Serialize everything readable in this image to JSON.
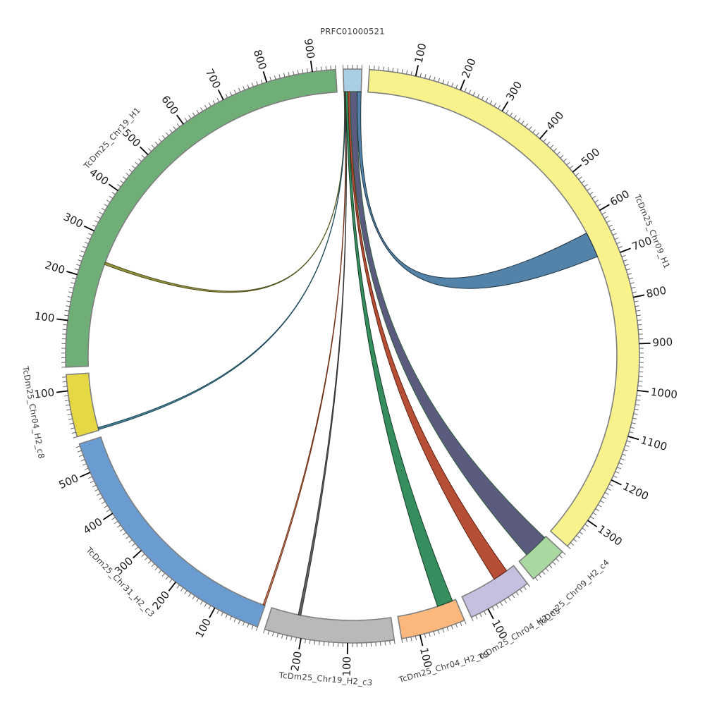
{
  "title": "",
  "background": "#ffffff",
  "chart_data": {
    "type": "chord",
    "layout": {
      "grid": false,
      "legend": "none",
      "tick_minor_interval": 10,
      "tick_major_interval": 100,
      "segment_border_color": "#7f7f7f",
      "tick_color_minor": "#666666",
      "tick_color_major": "#000000",
      "tick_label_color": "#1a1a1a",
      "name_label_color": "#3d3d3d"
    },
    "segments": [
      {
        "id": "PRFC01000521",
        "label": "PRFC01000521",
        "size": 40,
        "color": "#a9cfe5",
        "tick_labels": []
      },
      {
        "id": "TcDm25_Chr09_H1",
        "label": "TcDm25_Chr09_H1",
        "size": 1370,
        "color": "#f7f28b",
        "tick_labels": [
          100,
          200,
          300,
          400,
          500,
          600,
          700,
          800,
          900,
          1000,
          1100,
          1200,
          1300
        ]
      },
      {
        "id": "TcDm25_Chr09_H2_c4",
        "label": "TcDm25_Chr09_H2_c4",
        "size": 85,
        "color": "#a9d9a0",
        "tick_labels": []
      },
      {
        "id": "TcDm25_Chr04_H2_c5",
        "label": "TcDm25_Chr04_H2_c5",
        "size": 140,
        "color": "#c5bfe0",
        "tick_labels": [
          100
        ]
      },
      {
        "id": "TcDm25_Chr04_H2_c9",
        "label": "TcDm25_Chr04_H2_c9",
        "size": 140,
        "color": "#fcb87c",
        "tick_labels": [
          100
        ]
      },
      {
        "id": "TcDm25_Chr19_H2_c3",
        "label": "TcDm25_Chr19_H2_c3",
        "size": 280,
        "color": "#b9b9b9",
        "tick_labels": [
          100,
          200
        ]
      },
      {
        "id": "TcDm25_Chr31_H2_c3",
        "label": "TcDm25_Chr31_H2_c3",
        "size": 565,
        "color": "#6a9cd1",
        "tick_labels": [
          100,
          200,
          300,
          400,
          500
        ]
      },
      {
        "id": "TcDm25_Chr04_H2_c8",
        "label": "TcDm25_Chr04_H2_c8",
        "size": 135,
        "color": "#e6d845",
        "tick_labels": [
          100
        ]
      },
      {
        "id": "TcDm25_Chr19_H1",
        "label": "TcDm25_Chr19_H1",
        "size": 950,
        "color": "#6fae77",
        "tick_labels": [
          100,
          200,
          300,
          400,
          500,
          600,
          700,
          800,
          900
        ]
      }
    ],
    "chords": [
      {
        "source": "PRFC01000521",
        "source_range": [
          0.5,
          1.3
        ],
        "target": "TcDm25_Chr19_H1",
        "target_range": [
          240,
          246
        ],
        "color": "#8f8f3d",
        "border": "#4f4f1d"
      },
      {
        "source": "PRFC01000521",
        "source_range": [
          1.3,
          2.1
        ],
        "target": "TcDm25_Chr04_H2_c8",
        "target_range": [
          2,
          7
        ],
        "color": "#447d92",
        "border": "#1f4a5a"
      },
      {
        "source": "PRFC01000521",
        "source_range": [
          2.1,
          2.9
        ],
        "target": "TcDm25_Chr31_H2_c3",
        "target_range": [
          1,
          5
        ],
        "color": "#c07b5e",
        "border": "#6f3018"
      },
      {
        "source": "PRFC01000521",
        "source_range": [
          2.9,
          3.7
        ],
        "target": "TcDm25_Chr19_H2_c3",
        "target_range": [
          210,
          216
        ],
        "color": "#5a5a5a",
        "border": "#333333"
      },
      {
        "source": "PRFC01000521",
        "source_range": [
          3.7,
          9.5
        ],
        "target": "TcDm25_Chr04_H2_c9",
        "target_range": [
          8,
          45
        ],
        "color": "#2f8a59",
        "border": "#143d26"
      },
      {
        "source": "PRFC01000521",
        "source_range": [
          9.5,
          14.5
        ],
        "target": "TcDm25_Chr04_H2_c5",
        "target_range": [
          20,
          55
        ],
        "color": "#b4492f",
        "border": "#5e2113"
      },
      {
        "source": "PRFC01000521",
        "source_range": [
          14.5,
          31
        ],
        "target": "TcDm25_Chr09_H2_c4",
        "target_range": [
          4,
          62
        ],
        "color": "#55567a",
        "border": "#2f5d3a"
      },
      {
        "source": "PRFC01000521",
        "source_range": [
          31,
          40
        ],
        "target": "TcDm25_Chr09_H1",
        "target_range": [
          630,
          690
        ],
        "color": "#4d7fa6",
        "border": "#1f3340"
      }
    ]
  }
}
